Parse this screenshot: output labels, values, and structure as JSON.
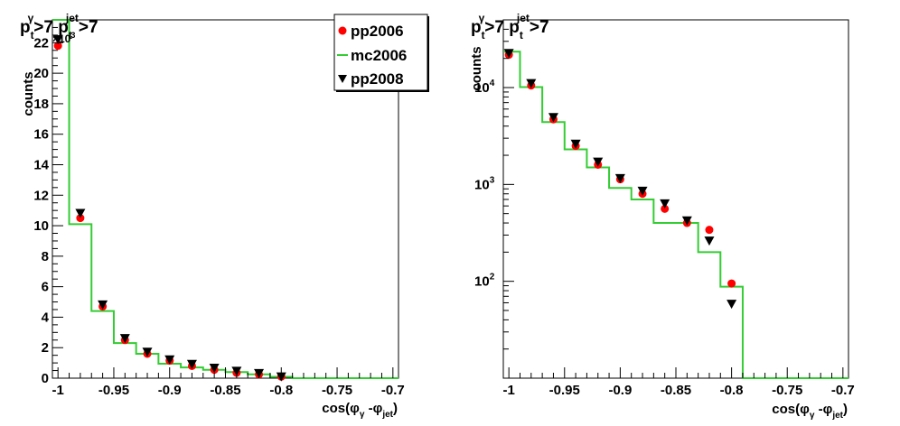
{
  "chart_data": [
    {
      "type": "scatter",
      "title": {
        "main": "p",
        "sub": "t",
        "sup": "γ",
        "rest": ">7 p",
        "sub2": "t",
        "sup2": "jet",
        "rest2": ">7"
      },
      "xlabel": {
        "pre": "cos(φ",
        "sub1": "γ",
        "mid": " -φ",
        "sub2": "jet",
        "post": ")"
      },
      "ylabel": "counts",
      "y_multiplier": "×10",
      "y_multiplier_exp": "3",
      "yscale": "linear",
      "xlim": [
        -1.005,
        -0.695
      ],
      "ylim": [
        0,
        23.5
      ],
      "xticks": [
        "-1",
        "-0.95",
        "-0.9",
        "-0.85",
        "-0.8",
        "-0.75",
        "-0.7"
      ],
      "xtick_values": [
        -1,
        -0.95,
        -0.9,
        -0.85,
        -0.8,
        -0.75,
        -0.7
      ],
      "yticks": [
        "0",
        "2",
        "4",
        "6",
        "8",
        "10",
        "12",
        "14",
        "16",
        "18",
        "20",
        "22"
      ],
      "ytick_values": [
        0,
        2,
        4,
        6,
        8,
        10,
        12,
        14,
        16,
        18,
        20,
        22
      ],
      "legend": [
        {
          "label": "pp2006",
          "marker": "circle",
          "color": "#ff0000"
        },
        {
          "label": "mc2006",
          "marker": "line",
          "color": "#33cc33"
        },
        {
          "label": "pp2008",
          "marker": "triangle-down",
          "color": "#000000"
        }
      ],
      "bin_edges": [
        -1.01,
        -0.99,
        -0.97,
        -0.95,
        -0.93,
        -0.91,
        -0.89,
        -0.87,
        -0.85,
        -0.83,
        -0.81,
        -0.79,
        -0.77,
        -0.75,
        -0.73,
        -0.71,
        -0.69
      ],
      "series": [
        {
          "name": "pp2006",
          "color": "#ff0000",
          "marker": "circle",
          "x": [
            -1.0,
            -0.98,
            -0.96,
            -0.94,
            -0.92,
            -0.9,
            -0.88,
            -0.86,
            -0.84,
            -0.82,
            -0.8
          ],
          "values": [
            21.8,
            10.5,
            4.7,
            2.5,
            1.6,
            1.15,
            0.8,
            0.55,
            0.35,
            0.25,
            0.1
          ]
        },
        {
          "name": "mc2006",
          "color": "#33cc33",
          "marker": "hist",
          "values": [
            23.5,
            10.1,
            4.4,
            2.3,
            1.6,
            0.95,
            0.7,
            0.55,
            0.4,
            0.25,
            0.09,
            0,
            0,
            0,
            0,
            0
          ]
        },
        {
          "name": "pp2008",
          "color": "#000000",
          "marker": "triangle-down",
          "x": [
            -1.0,
            -0.98,
            -0.96,
            -0.94,
            -0.92,
            -0.9,
            -0.88,
            -0.86,
            -0.84,
            -0.82,
            -0.8
          ],
          "values": [
            22.2,
            10.8,
            4.8,
            2.6,
            1.7,
            1.2,
            0.9,
            0.65,
            0.45,
            0.3,
            0.08
          ]
        }
      ]
    },
    {
      "type": "scatter",
      "title": {
        "main": "p",
        "sub": "t",
        "sup": "γ",
        "rest": ">7 p",
        "sub2": "t",
        "sup2": "jet",
        "rest2": ">7"
      },
      "xlabel": {
        "pre": "cos(φ",
        "sub1": "γ",
        "mid": " -φ",
        "sub2": "jet",
        "post": ")"
      },
      "ylabel": "counts",
      "yscale": "log",
      "xlim": [
        -1.005,
        -0.695
      ],
      "ylim": [
        10,
        50000
      ],
      "xticks": [
        "-1",
        "-0.95",
        "-0.9",
        "-0.85",
        "-0.8",
        "-0.75",
        "-0.7"
      ],
      "xtick_values": [
        -1,
        -0.95,
        -0.9,
        -0.85,
        -0.8,
        -0.75,
        -0.7
      ],
      "yticks": [
        {
          "base": "10",
          "exp": "2",
          "value": 100
        },
        {
          "base": "10",
          "exp": "3",
          "value": 1000
        },
        {
          "base": "10",
          "exp": "4",
          "value": 10000
        }
      ],
      "bin_edges": [
        -1.01,
        -0.99,
        -0.97,
        -0.95,
        -0.93,
        -0.91,
        -0.89,
        -0.87,
        -0.85,
        -0.83,
        -0.81,
        -0.79,
        -0.77,
        -0.75,
        -0.73,
        -0.71,
        -0.69
      ],
      "series": [
        {
          "name": "pp2006",
          "color": "#ff0000",
          "marker": "circle",
          "x": [
            -1.0,
            -0.98,
            -0.96,
            -0.94,
            -0.92,
            -0.9,
            -0.88,
            -0.86,
            -0.84,
            -0.82,
            -0.8
          ],
          "values": [
            21800,
            10500,
            4700,
            2500,
            1600,
            1130,
            800,
            560,
            400,
            340,
            95
          ]
        },
        {
          "name": "mc2006",
          "color": "#33cc33",
          "marker": "hist",
          "values": [
            23500,
            10100,
            4400,
            2300,
            1500,
            920,
            700,
            400,
            400,
            200,
            88,
            0,
            0,
            0,
            0,
            0
          ]
        },
        {
          "name": "pp2008",
          "color": "#000000",
          "marker": "triangle-down",
          "x": [
            -1.0,
            -0.98,
            -0.96,
            -0.94,
            -0.92,
            -0.9,
            -0.88,
            -0.86,
            -0.84,
            -0.82,
            -0.8
          ],
          "values": [
            22500,
            11000,
            4900,
            2600,
            1700,
            1150,
            850,
            630,
            420,
            260,
            58
          ]
        }
      ]
    }
  ]
}
